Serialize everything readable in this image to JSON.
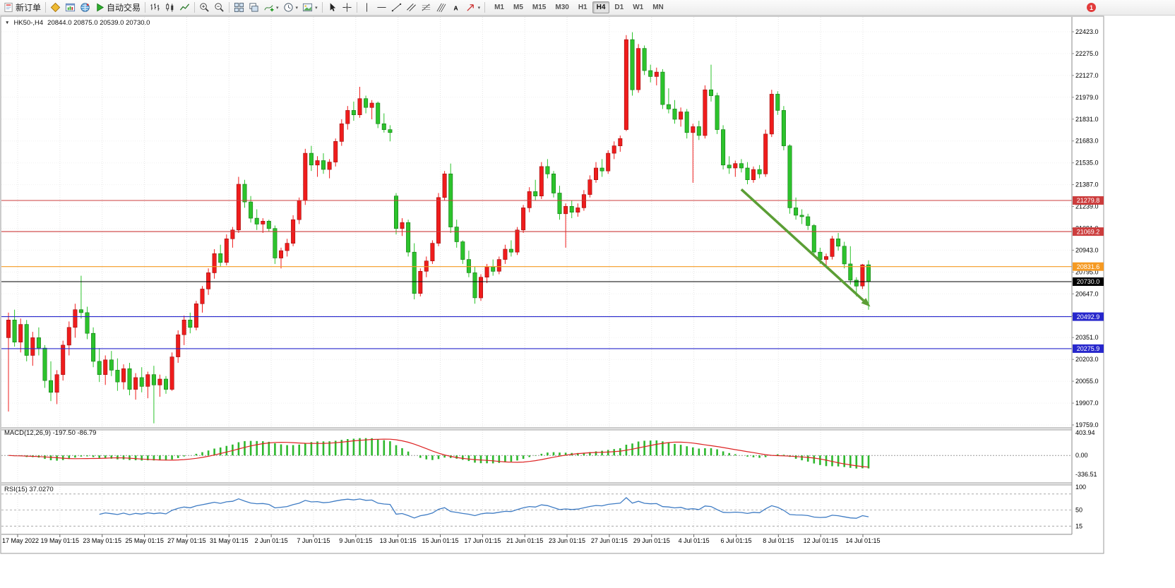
{
  "toolbar": {
    "new_order_label": "新订单",
    "auto_trading_label": "自动交易",
    "items": [
      {
        "name": "new-order-button",
        "icon": "new-order-icon",
        "label": "新订单"
      },
      {
        "name": "separator"
      },
      {
        "name": "symbols-button",
        "icon": "symbols-icon"
      },
      {
        "name": "chart-window-button",
        "icon": "chart-window-icon"
      },
      {
        "name": "marketwatch-button",
        "icon": "globe-icon"
      },
      {
        "name": "auto-trading-button",
        "icon": "play-icon",
        "label": "自动交易"
      },
      {
        "name": "separator"
      },
      {
        "name": "bar-chart-button",
        "icon": "bar-chart-icon"
      },
      {
        "name": "candlestick-chart-button",
        "icon": "candlestick-icon"
      },
      {
        "name": "line-chart-button",
        "icon": "line-chart-icon"
      },
      {
        "name": "separator"
      },
      {
        "name": "zoom-in-button",
        "icon": "zoom-in-icon"
      },
      {
        "name": "zoom-out-button",
        "icon": "zoom-out-icon"
      },
      {
        "name": "separator"
      },
      {
        "name": "tile-windows-button",
        "icon": "tile-windows-icon"
      },
      {
        "name": "cascade-windows-button",
        "icon": "cascade-icon"
      },
      {
        "name": "indicators-button",
        "icon": "indicators-icon",
        "caret": true
      },
      {
        "name": "periods-button",
        "icon": "clock-icon",
        "caret": true
      },
      {
        "name": "templates-button",
        "icon": "template-icon",
        "caret": true
      },
      {
        "name": "separator"
      },
      {
        "name": "cursor-button",
        "icon": "cursor-icon"
      },
      {
        "name": "crosshair-button",
        "icon": "crosshair-icon"
      },
      {
        "name": "separator"
      },
      {
        "name": "vertical-line-button",
        "icon": "vertical-line-icon"
      },
      {
        "name": "horizontal-line-button",
        "icon": "horizontal-line-icon"
      },
      {
        "name": "trendline-button",
        "icon": "trendline-icon"
      },
      {
        "name": "channel-button",
        "icon": "channel-icon"
      },
      {
        "name": "fibonacci-button",
        "icon": "fibonacci-icon"
      },
      {
        "name": "pitchfork-button",
        "icon": "pitchfork-icon"
      },
      {
        "name": "text-button",
        "icon": "text-icon"
      },
      {
        "name": "arrows-button",
        "icon": "arrow-tool-icon",
        "caret": true
      },
      {
        "name": "separator"
      }
    ],
    "timeframes": [
      "M1",
      "M5",
      "M15",
      "M30",
      "H1",
      "H4",
      "D1",
      "W1",
      "MN"
    ],
    "active_timeframe": "H4",
    "notifications": {
      "count": "1"
    }
  },
  "chart": {
    "symbol_period": "HK50-,H4",
    "ohlc_values": "20844.0 20875.0 20539.0 20730.0"
  },
  "chart_data": {
    "type": "candlestick",
    "symbol": "HK50-",
    "timeframe": "H4",
    "colors": {
      "bull": "#ef1c1c",
      "bull_border": "#9b1010",
      "bear": "#2cc32c",
      "bear_border": "#117711",
      "macd_hist": "#2eb82e",
      "macd_signal": "#dd2222",
      "rsi_line": "#3f7cc4",
      "level_red": "#cc3d3d",
      "level_orange": "#f59a23",
      "level_blue": "#2727cc",
      "current_price": "#000000",
      "arrow": "#5b9e35"
    },
    "y_axis": {
      "top_price": 22423.0,
      "bottom_price": 19759.0,
      "step": 148,
      "labels": [
        "22423.0",
        "22275.0",
        "22127.0",
        "21979.0",
        "21831.0",
        "21683.0",
        "21535.0",
        "21387.0",
        "21239.0",
        "21091.0",
        "20943.0",
        "20795.0",
        "20647.0",
        "20499.0",
        "20351.0",
        "20203.0",
        "20055.0",
        "19907.0",
        "19759.0"
      ]
    },
    "x_labels": [
      "17 May 2022",
      "19 May 01:15",
      "23 May 01:15",
      "25 May 01:15",
      "27 May 01:15",
      "31 May 01:15",
      "2 Jun 01:15",
      "7 Jun 01:15",
      "9 Jun 01:15",
      "13 Jun 01:15",
      "15 Jun 01:15",
      "17 Jun 01:15",
      "21 Jun 01:15",
      "23 Jun 01:15",
      "27 Jun 01:15",
      "29 Jun 01:15",
      "4 Jul 01:15",
      "6 Jul 01:15",
      "8 Jul 01:15",
      "12 Jul 01:15",
      "14 Jul 01:15"
    ],
    "levels": [
      {
        "price": 21279.8,
        "label": "21279.8",
        "color": "#cc3d3d"
      },
      {
        "price": 21069.2,
        "label": "21069.2",
        "color": "#cc3d3d"
      },
      {
        "price": 20831.6,
        "label": "20831.6",
        "color": "#f59a23"
      },
      {
        "price": 20730.0,
        "label": "20730.0",
        "color": "#000000"
      },
      {
        "price": 20492.9,
        "label": "20492.9",
        "color": "#2727cc"
      },
      {
        "price": 20275.9,
        "label": "20275.9",
        "color": "#2727cc"
      }
    ],
    "arrow": {
      "from": {
        "index": 121,
        "price": 21355
      },
      "to": {
        "index": 142.3,
        "price": 20560
      },
      "color": "#5b9e35",
      "width": 3.6
    },
    "macd": {
      "display": "MACD(12,26,9) -197.50 -86.79",
      "title": "MACD(12,26,9)",
      "values": "-197.50 -86.79",
      "scale_max": 403.94,
      "scale_min": -336.51,
      "axis_labels": [
        "403.94",
        "0.00",
        "-336.51"
      ],
      "fast": 12,
      "slow": 26,
      "signal": 9
    },
    "rsi": {
      "display": "RSI(15) 37.0270",
      "title": "RSI(15)",
      "value": "37.0270",
      "period": 15,
      "axis_labels": [
        "100",
        "50",
        "15"
      ],
      "levels": [
        85,
        50,
        15
      ],
      "range": [
        0,
        100
      ]
    },
    "candles": [
      [
        20350,
        20520,
        19850,
        20470
      ],
      [
        20470,
        20540,
        20290,
        20320
      ],
      [
        20320,
        20480,
        20250,
        20440
      ],
      [
        20440,
        20470,
        20190,
        20230
      ],
      [
        20230,
        20390,
        20160,
        20350
      ],
      [
        20350,
        20420,
        20230,
        20280
      ],
      [
        20280,
        20300,
        20010,
        20060
      ],
      [
        20060,
        20190,
        19920,
        19980
      ],
      [
        19980,
        20130,
        19900,
        20100
      ],
      [
        20100,
        20330,
        20060,
        20300
      ],
      [
        20300,
        20460,
        20230,
        20420
      ],
      [
        20420,
        20580,
        20350,
        20540
      ],
      [
        20540,
        20770,
        20480,
        20520
      ],
      [
        20520,
        20560,
        20340,
        20380
      ],
      [
        20380,
        20420,
        20150,
        20190
      ],
      [
        20190,
        20280,
        20050,
        20100
      ],
      [
        20100,
        20230,
        20030,
        20200
      ],
      [
        20200,
        20260,
        20090,
        20130
      ],
      [
        20130,
        20210,
        19990,
        20050
      ],
      [
        20050,
        20170,
        20000,
        20140
      ],
      [
        20140,
        20180,
        19960,
        20000
      ],
      [
        20000,
        20110,
        19930,
        20080
      ],
      [
        20080,
        20150,
        19980,
        20020
      ],
      [
        20020,
        20120,
        19940,
        20100
      ],
      [
        20100,
        20160,
        19770,
        20030
      ],
      [
        20030,
        20100,
        19950,
        20070
      ],
      [
        20070,
        20090,
        19970,
        20000
      ],
      [
        20000,
        20250,
        19990,
        20220
      ],
      [
        20220,
        20400,
        20180,
        20370
      ],
      [
        20370,
        20500,
        20300,
        20470
      ],
      [
        20470,
        20520,
        20380,
        20420
      ],
      [
        20420,
        20600,
        20400,
        20580
      ],
      [
        20580,
        20700,
        20520,
        20680
      ],
      [
        20680,
        20820,
        20640,
        20790
      ],
      [
        20790,
        20950,
        20750,
        20920
      ],
      [
        20920,
        20980,
        20830,
        20860
      ],
      [
        20860,
        21050,
        20840,
        21020
      ],
      [
        21020,
        21100,
        20960,
        21080
      ],
      [
        21080,
        21440,
        21060,
        21390
      ],
      [
        21390,
        21420,
        21230,
        21270
      ],
      [
        21270,
        21310,
        21130,
        21160
      ],
      [
        21160,
        21220,
        21080,
        21120
      ],
      [
        21120,
        21160,
        21060,
        21140
      ],
      [
        21140,
        21150,
        21070,
        21090
      ],
      [
        21090,
        21110,
        20850,
        20890
      ],
      [
        20890,
        20960,
        20820,
        20940
      ],
      [
        20940,
        21020,
        20900,
        20990
      ],
      [
        20990,
        21180,
        20970,
        21150
      ],
      [
        21150,
        21300,
        21120,
        21280
      ],
      [
        21280,
        21630,
        21250,
        21600
      ],
      [
        21600,
        21650,
        21480,
        21520
      ],
      [
        21520,
        21580,
        21440,
        21550
      ],
      [
        21550,
        21600,
        21460,
        21490
      ],
      [
        21490,
        21560,
        21430,
        21540
      ],
      [
        21540,
        21700,
        21510,
        21680
      ],
      [
        21680,
        21830,
        21650,
        21800
      ],
      [
        21800,
        21920,
        21760,
        21890
      ],
      [
        21890,
        21950,
        21820,
        21860
      ],
      [
        21860,
        22050,
        21840,
        21970
      ],
      [
        21970,
        21990,
        21870,
        21910
      ],
      [
        21910,
        21960,
        21830,
        21940
      ],
      [
        21940,
        21950,
        21770,
        21800
      ],
      [
        21800,
        21870,
        21740,
        21760
      ],
      [
        21760,
        21790,
        21680,
        21740
      ],
      [
        21310,
        21330,
        21050,
        21090
      ],
      [
        21090,
        21160,
        21040,
        21130
      ],
      [
        21130,
        21150,
        20900,
        20930
      ],
      [
        20930,
        20990,
        20610,
        20650
      ],
      [
        20650,
        20820,
        20630,
        20800
      ],
      [
        20800,
        20900,
        20760,
        20870
      ],
      [
        20870,
        21010,
        20850,
        20990
      ],
      [
        20990,
        21330,
        20970,
        21300
      ],
      [
        21300,
        21480,
        21280,
        21460
      ],
      [
        21460,
        21530,
        21060,
        21100
      ],
      [
        21100,
        21150,
        20960,
        21000
      ],
      [
        21000,
        21010,
        20850,
        20880
      ],
      [
        20880,
        20940,
        20760,
        20790
      ],
      [
        20790,
        20830,
        20580,
        20620
      ],
      [
        20620,
        20780,
        20600,
        20760
      ],
      [
        20760,
        20850,
        20720,
        20830
      ],
      [
        20830,
        20880,
        20770,
        20800
      ],
      [
        20800,
        20900,
        20780,
        20880
      ],
      [
        20880,
        20980,
        20850,
        20950
      ],
      [
        20950,
        21010,
        20900,
        20930
      ],
      [
        20930,
        21100,
        20910,
        21080
      ],
      [
        21080,
        21250,
        21060,
        21230
      ],
      [
        21230,
        21370,
        21200,
        21340
      ],
      [
        21340,
        21420,
        21280,
        21310
      ],
      [
        21310,
        21540,
        21290,
        21510
      ],
      [
        21510,
        21560,
        21430,
        21460
      ],
      [
        21460,
        21480,
        21300,
        21330
      ],
      [
        21330,
        21380,
        21150,
        21190
      ],
      [
        21190,
        21260,
        20960,
        21240
      ],
      [
        21240,
        21280,
        21160,
        21200
      ],
      [
        21200,
        21260,
        21170,
        21230
      ],
      [
        21230,
        21350,
        21210,
        21320
      ],
      [
        21320,
        21450,
        21300,
        21420
      ],
      [
        21420,
        21540,
        21400,
        21500
      ],
      [
        21500,
        21560,
        21440,
        21480
      ],
      [
        21480,
        21620,
        21460,
        21600
      ],
      [
        21600,
        21680,
        21560,
        21650
      ],
      [
        21650,
        21720,
        21610,
        21700
      ],
      [
        21760,
        22400,
        21750,
        22370
      ],
      [
        22370,
        22420,
        21990,
        22030
      ],
      [
        22030,
        22340,
        22010,
        22310
      ],
      [
        22310,
        22330,
        22130,
        22160
      ],
      [
        22160,
        22200,
        22080,
        22120
      ],
      [
        22120,
        22180,
        22060,
        22150
      ],
      [
        22150,
        22170,
        21900,
        21930
      ],
      [
        21930,
        22040,
        21870,
        21900
      ],
      [
        21900,
        21960,
        21800,
        21830
      ],
      [
        21830,
        21910,
        21780,
        21880
      ],
      [
        21880,
        21900,
        21700,
        21740
      ],
      [
        21740,
        21800,
        21400,
        21780
      ],
      [
        21780,
        21820,
        21690,
        21720
      ],
      [
        21720,
        22060,
        21700,
        22030
      ],
      [
        22030,
        22200,
        21950,
        21990
      ],
      [
        21990,
        22010,
        21730,
        21760
      ],
      [
        21760,
        21790,
        21490,
        21520
      ],
      [
        21520,
        21580,
        21460,
        21500
      ],
      [
        21500,
        21550,
        21440,
        21530
      ],
      [
        21530,
        21560,
        21470,
        21500
      ],
      [
        21500,
        21540,
        21390,
        21420
      ],
      [
        21420,
        21510,
        21400,
        21490
      ],
      [
        21490,
        21520,
        21430,
        21460
      ],
      [
        21460,
        21760,
        21440,
        21730
      ],
      [
        21730,
        22030,
        21710,
        22000
      ],
      [
        22000,
        22020,
        21860,
        21890
      ],
      [
        21890,
        21920,
        21620,
        21650
      ],
      [
        21650,
        21660,
        21190,
        21230
      ],
      [
        21230,
        21300,
        21150,
        21180
      ],
      [
        21180,
        21220,
        21120,
        21170
      ],
      [
        21170,
        21190,
        21080,
        21110
      ],
      [
        21110,
        21120,
        20900,
        20930
      ],
      [
        20930,
        20960,
        20850,
        20880
      ],
      [
        20880,
        20920,
        20840,
        20900
      ],
      [
        20900,
        21040,
        20880,
        21020
      ],
      [
        21020,
        21060,
        20940,
        20970
      ],
      [
        20970,
        21000,
        20820,
        20850
      ],
      [
        20850,
        20970,
        20710,
        20740
      ],
      [
        20740,
        20760,
        20630,
        20700
      ],
      [
        20700,
        20850,
        20680,
        20844
      ],
      [
        20844,
        20875,
        20539,
        20730
      ]
    ]
  }
}
